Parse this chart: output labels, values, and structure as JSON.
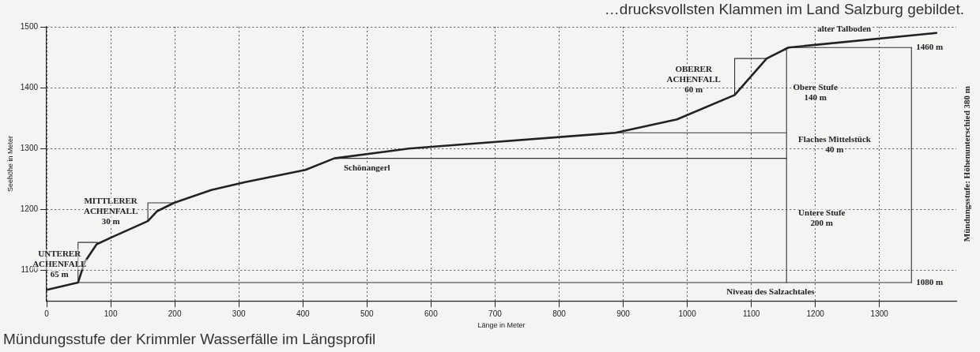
{
  "chart_data": {
    "type": "line",
    "subtitle": "…drucksvollsten Klammen im Land Salzburg gebildet.",
    "xlabel": "Länge in Meter",
    "ylabel": "Seehöhe in Meter",
    "y2label": "Mündungsstufe: Höhenunterschied 380 m",
    "xlim": [
      0,
      1420
    ],
    "xticks": [
      0,
      100,
      200,
      300,
      400,
      500,
      600,
      700,
      800,
      900,
      1000,
      1100,
      1200,
      1300
    ],
    "ylim": [
      1050,
      1500
    ],
    "yticks": [
      1100,
      1200,
      1300,
      1400,
      1500
    ],
    "grid": true,
    "legend": false,
    "marker": "none",
    "line_style": "solid",
    "series": [
      {
        "color": "#222222",
        "x": [
          0,
          49,
          59,
          78,
          105,
          158,
          172,
          199,
          257,
          310,
          404,
          449,
          565,
          637,
          888,
          984,
          1074,
          1124,
          1158,
          1389
        ],
        "values": [
          1068,
          1080,
          1113,
          1143,
          1156,
          1181,
          1197,
          1211,
          1232,
          1245,
          1265,
          1284,
          1300,
          1306,
          1326,
          1348,
          1388,
          1448,
          1466,
          1490
        ]
      },
      {
        "color": "#333333",
        "x": [
          49,
          1350
        ],
        "values": [
          1080,
          1080
        ]
      },
      {
        "color": "#333333",
        "x": [
          449,
          1155
        ],
        "values": [
          1284,
          1284
        ]
      },
      {
        "color": "#333333",
        "x": [
          888,
          1155
        ],
        "values": [
          1326,
          1326
        ]
      },
      {
        "color": "#333333",
        "x": [
          1158,
          1350
        ],
        "values": [
          1466,
          1466
        ]
      },
      {
        "color": "#333333",
        "x": [
          1155,
          1155
        ],
        "values": [
          1080,
          1466
        ]
      },
      {
        "color": "#333333",
        "x": [
          1350,
          1350
        ],
        "values": [
          1080,
          1466
        ]
      },
      {
        "color": "#333333",
        "x": [
          80,
          49,
          49
        ],
        "values": [
          1146,
          1146,
          1080
        ]
      },
      {
        "color": "#333333",
        "x": [
          199,
          158,
          158
        ],
        "values": [
          1211,
          1211,
          1181
        ]
      },
      {
        "color": "#333333",
        "x": [
          1124,
          1074,
          1074
        ],
        "values": [
          1448,
          1448,
          1388
        ]
      }
    ],
    "annotations": [
      "UNTERER\nACHENFALL\n65 m",
      "MITTLERER\nACHENFALL\n30 m",
      "Schönangerl",
      "OBERER\nACHENFALL\n60 m",
      "Obere Stufe\n140 m",
      "Flaches Mittelstück\n40 m",
      "Untere Stufe\n200 m",
      "alter Talboden",
      {
        "text": "1460 m",
        "x": 1350,
        "y": 1466
      },
      {
        "text": "1080 m",
        "x": 1350,
        "y": 1080
      },
      "Niveau des Salzachtales",
      "Mündungsstufe der Krimmler Wasserfälle im Längsprofil"
    ]
  }
}
